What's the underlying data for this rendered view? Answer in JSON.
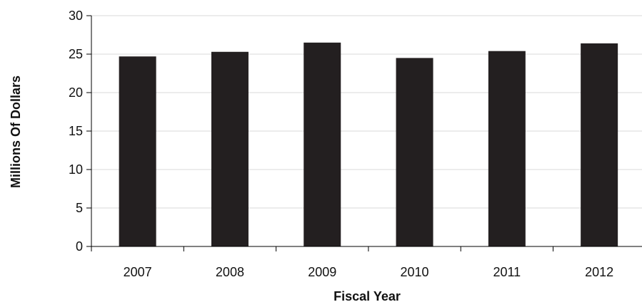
{
  "chart_data": {
    "type": "bar",
    "title": "",
    "xlabel": "Fiscal Year",
    "ylabel": "Millions Of Dollars",
    "categories": [
      "2007",
      "2008",
      "2009",
      "2010",
      "2011",
      "2012"
    ],
    "values": [
      24.7,
      25.3,
      26.5,
      24.5,
      25.4,
      26.4
    ],
    "ylim": [
      0,
      30
    ],
    "yticks": [
      "0",
      "5",
      "10",
      "15",
      "20",
      "25",
      "30"
    ],
    "grid": true,
    "legend": "none",
    "colors": {
      "bar": "#231f20",
      "grid": "#d9d9d9",
      "axis": "#000000"
    }
  }
}
